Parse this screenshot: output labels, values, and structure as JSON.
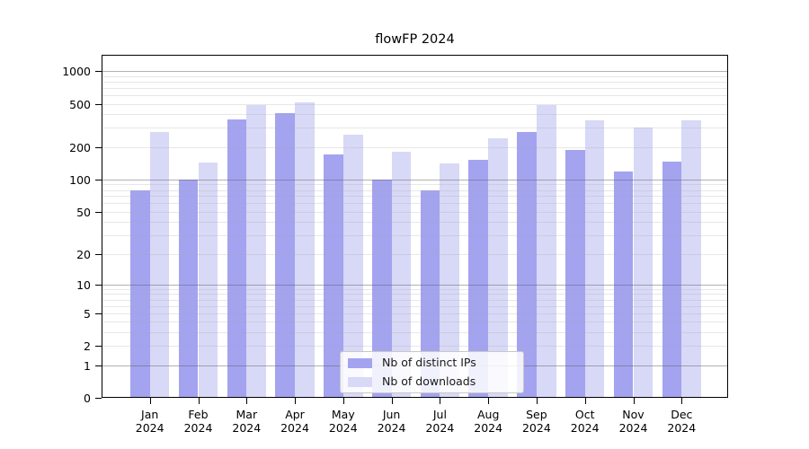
{
  "page": {
    "background_color": "#ffffff"
  },
  "chart_data": {
    "type": "bar",
    "title": "flowFP 2024",
    "categories": [
      "Jan 2024",
      "Feb 2024",
      "Mar 2024",
      "Apr 2024",
      "May 2024",
      "Jun 2024",
      "Jul 2024",
      "Aug 2024",
      "Sep 2024",
      "Oct 2024",
      "Nov 2024",
      "Dec 2024"
    ],
    "month_labels": [
      "Jan",
      "Feb",
      "Mar",
      "Apr",
      "May",
      "Jun",
      "Jul",
      "Aug",
      "Sep",
      "Oct",
      "Nov",
      "Dec"
    ],
    "year_label": "2024",
    "series": [
      {
        "name": "Nb of distinct IPs",
        "color": "#a3a3f0",
        "values": [
          80,
          100,
          360,
          408,
          170,
          100,
          80,
          153,
          276,
          186,
          118,
          147
        ]
      },
      {
        "name": "Nb of downloads",
        "color": "#d8d8f7",
        "values": [
          276,
          145,
          488,
          512,
          258,
          182,
          140,
          240,
          488,
          355,
          302,
          355
        ]
      }
    ],
    "y_axis": {
      "scale": "log1p",
      "tick_values": [
        0,
        1,
        2,
        5,
        10,
        20,
        50,
        100,
        200,
        500,
        1000
      ],
      "tick_labels": [
        "0",
        "1",
        "2",
        "5",
        "10",
        "20",
        "50",
        "100",
        "200",
        "500",
        "1000"
      ],
      "ylim": [
        0,
        1430
      ]
    },
    "x_axis": {
      "tick_style": "two-line month + year"
    },
    "grid": {
      "major_at": [
        1,
        10,
        100,
        1000
      ],
      "minor": "2-9 per decade (2..900)",
      "drawn_above_bars": true
    },
    "legend": {
      "location": "inside-bottom-center",
      "items": [
        {
          "label": "Nb of distinct IPs",
          "color": "#a3a3f0"
        },
        {
          "label": "Nb of downloads",
          "color": "#d8d8f7"
        }
      ]
    }
  }
}
